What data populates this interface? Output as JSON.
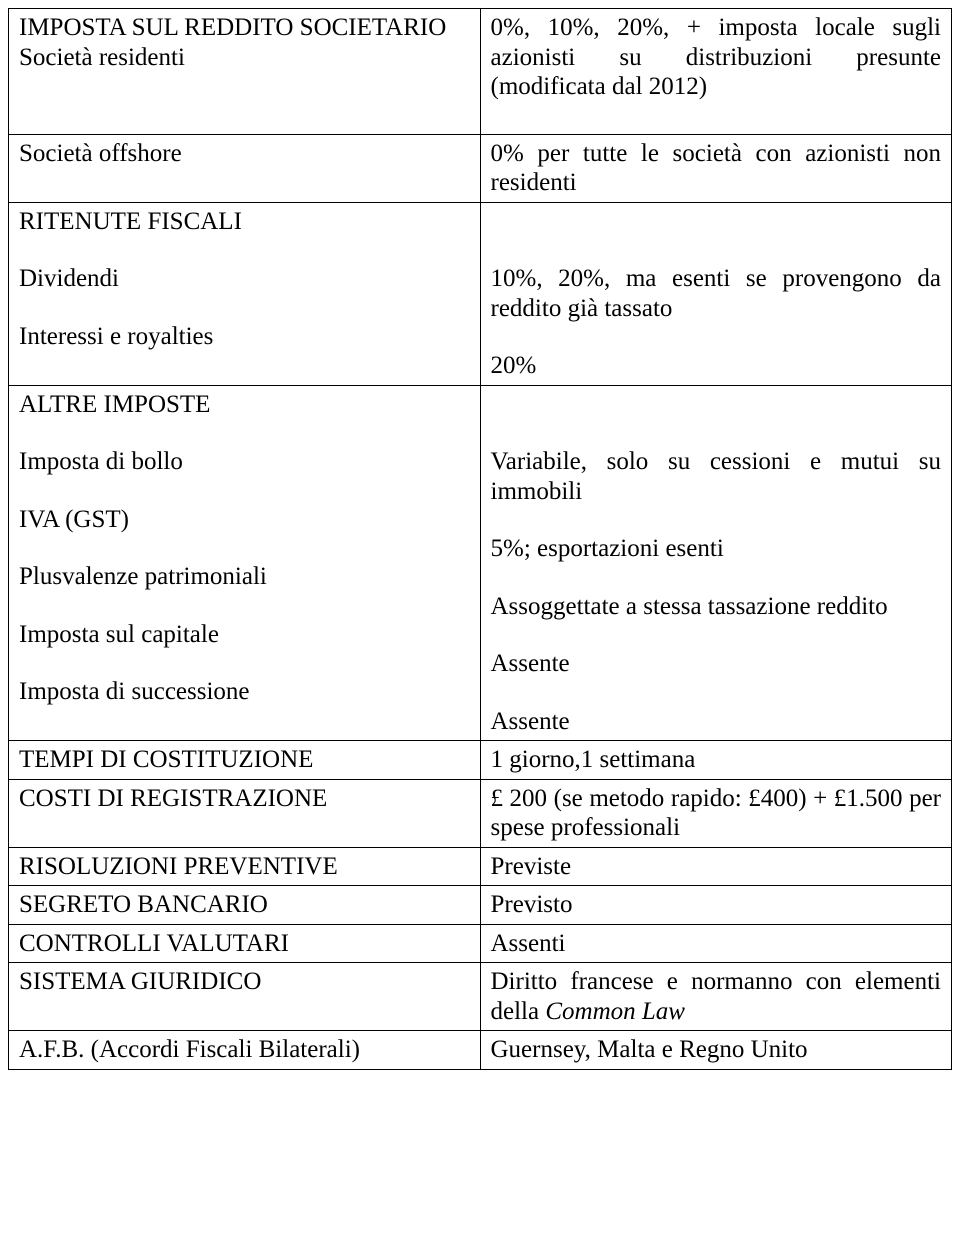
{
  "table": {
    "border_color": "#000000",
    "background_color": "#ffffff",
    "text_color": "#000000",
    "font_family": "Times New Roman",
    "font_size_pt": 19,
    "col_widths": [
      0.5,
      0.5
    ],
    "rows": [
      {
        "left_heading": "IMPOSTA SUL REDDITO SOCIETARIO",
        "left_sub": "Società residenti",
        "right": "0%, 10%, 20%, + imposta locale sugli azionisti su distribuzioni presunte (modificata dal 2012)",
        "tall_bottom": true
      },
      {
        "left_sub": "Società offshore",
        "right": "0% per tutte le società con azionisti non residenti"
      },
      {
        "left_heading": "RITENUTE FISCALI",
        "pairs": [
          {
            "label": "Dividendi",
            "value": "10%, 20%, ma esenti se provengono da reddito già tassato"
          },
          {
            "label": "Interessi e royalties",
            "value": "20%"
          }
        ]
      },
      {
        "left_heading": "ALTRE IMPOSTE",
        "pairs": [
          {
            "label": "Imposta di bollo",
            "value": "Variabile, solo su cessioni e mutui su immobili"
          },
          {
            "label": "IVA (GST)",
            "value": "5%; esportazioni esenti"
          },
          {
            "label": "Plusvalenze patrimoniali",
            "value": "Assoggettate a stessa tassazione reddito"
          },
          {
            "label": "Imposta sul capitale",
            "value": "Assente"
          },
          {
            "label": "Imposta di successione",
            "value": "Assente"
          }
        ]
      },
      {
        "left": "TEMPI DI COSTITUZIONE",
        "right": "1 giorno,1 settimana"
      },
      {
        "left": "COSTI DI REGISTRAZIONE",
        "right": "£ 200 (se metodo rapido: £400) + £1.500 per spese professionali"
      },
      {
        "left": "RISOLUZIONI PREVENTIVE",
        "right": "Previste"
      },
      {
        "left": "SEGRETO BANCARIO",
        "right": "Previsto"
      },
      {
        "left": "CONTROLLI VALUTARI",
        "right": "Assenti"
      },
      {
        "left": "SISTEMA GIURIDICO",
        "right_html": "Diritto francese e normanno con elementi della <span class=\"italic\">Common Law</span>"
      },
      {
        "left": "A.F.B. (Accordi Fiscali Bilaterali)",
        "right": "Guernsey, Malta e Regno Unito"
      }
    ]
  }
}
